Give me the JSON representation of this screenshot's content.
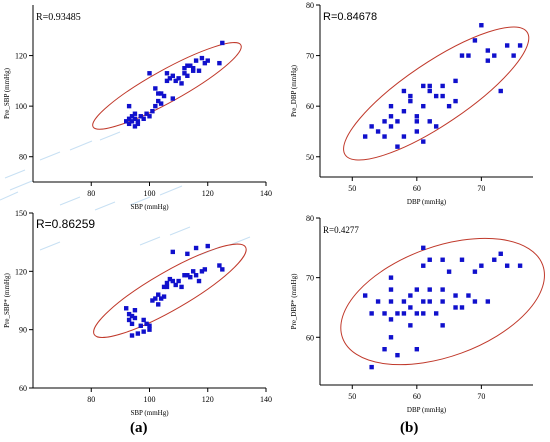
{
  "colors": {
    "point": "#1010cc",
    "ellipse": "#c0392b",
    "axis": "#000000",
    "watermark": "#9cc8ea"
  },
  "captions": [
    "(a)",
    "(b)"
  ],
  "chart_data": [
    {
      "type": "scatter",
      "r_label": "R=0.93485",
      "xlabel": "SBP (mmHg)",
      "ylabel": "Pre_SBP (mmHg)",
      "xlim": [
        60,
        140
      ],
      "ylim": [
        70,
        140
      ],
      "xticks": [
        80,
        100,
        120,
        140
      ],
      "yticks": [
        80,
        100,
        120
      ],
      "ellipse": {
        "center": [
          106,
          108
        ],
        "rx": 29,
        "ry": 5.5,
        "angle": -29
      },
      "points": [
        [
          92,
          94
        ],
        [
          93,
          95
        ],
        [
          93,
          93
        ],
        [
          94,
          96
        ],
        [
          94,
          94
        ],
        [
          95,
          92
        ],
        [
          95,
          95
        ],
        [
          96,
          93
        ],
        [
          95,
          97
        ],
        [
          97,
          96
        ],
        [
          98,
          95
        ],
        [
          99,
          97
        ],
        [
          100,
          96
        ],
        [
          93,
          100
        ],
        [
          100,
          113
        ],
        [
          101,
          98
        ],
        [
          102,
          100
        ],
        [
          103,
          102
        ],
        [
          103,
          105
        ],
        [
          104,
          105
        ],
        [
          105,
          104
        ],
        [
          106,
          110
        ],
        [
          106,
          113
        ],
        [
          107,
          111
        ],
        [
          108,
          112
        ],
        [
          109,
          110
        ],
        [
          110,
          111
        ],
        [
          111,
          109
        ],
        [
          112,
          113
        ],
        [
          112,
          115
        ],
        [
          113,
          116
        ],
        [
          114,
          116
        ],
        [
          115,
          114
        ],
        [
          116,
          118
        ],
        [
          117,
          114
        ],
        [
          118,
          119
        ],
        [
          119,
          117
        ],
        [
          120,
          118
        ],
        [
          115,
          115
        ],
        [
          113,
          112
        ],
        [
          124,
          117
        ],
        [
          125,
          125
        ],
        [
          102,
          107
        ],
        [
          104,
          101
        ],
        [
          108,
          103
        ],
        [
          96,
          94
        ]
      ]
    },
    {
      "type": "scatter",
      "r_label": "R=0.84678",
      "xlabel": "DBP (mmHg)",
      "ylabel": "Pre_DBP (mmHg)",
      "xlim": [
        45,
        78
      ],
      "ylim": [
        46,
        80
      ],
      "xticks": [
        50,
        60,
        70
      ],
      "yticks": [
        50,
        60,
        70,
        80
      ],
      "ellipse": {
        "center": [
          63,
          62.5
        ],
        "rx": 17,
        "ry": 4.8,
        "angle": -34
      },
      "points": [
        [
          52,
          54
        ],
        [
          53,
          56
        ],
        [
          54,
          55
        ],
        [
          55,
          57
        ],
        [
          55,
          54
        ],
        [
          56,
          60
        ],
        [
          56,
          58
        ],
        [
          56,
          56
        ],
        [
          57,
          57
        ],
        [
          57,
          52
        ],
        [
          58,
          54
        ],
        [
          58,
          59
        ],
        [
          59,
          61
        ],
        [
          59,
          62
        ],
        [
          60,
          58
        ],
        [
          60,
          57
        ],
        [
          60,
          55
        ],
        [
          61,
          64
        ],
        [
          61,
          60
        ],
        [
          61,
          53
        ],
        [
          62,
          63
        ],
        [
          62,
          64
        ],
        [
          63,
          56
        ],
        [
          63,
          62
        ],
        [
          64,
          62
        ],
        [
          64,
          64
        ],
        [
          65,
          60
        ],
        [
          66,
          65
        ],
        [
          66,
          61
        ],
        [
          67,
          70
        ],
        [
          68,
          70
        ],
        [
          69,
          73
        ],
        [
          70,
          76
        ],
        [
          71,
          69
        ],
        [
          71,
          71
        ],
        [
          72,
          70
        ],
        [
          73,
          63
        ],
        [
          74,
          72
        ],
        [
          75,
          70
        ],
        [
          76,
          72
        ],
        [
          58,
          63
        ],
        [
          62,
          57
        ]
      ]
    },
    {
      "type": "scatter",
      "r_label": "R=0.86259",
      "xlabel": "SBP (mmHg)",
      "ylabel": "Pre_SBP* (mmHg)",
      "xlim": [
        60,
        140
      ],
      "ylim": [
        60,
        150
      ],
      "xticks": [
        80,
        100,
        120,
        140
      ],
      "yticks": [
        60,
        90,
        120,
        150
      ],
      "ellipse": {
        "center": [
          107,
          110
        ],
        "rx": 30,
        "ry": 6.5,
        "angle": -30
      },
      "points": [
        [
          92,
          101
        ],
        [
          93,
          98
        ],
        [
          93,
          95
        ],
        [
          94,
          97
        ],
        [
          94,
          93
        ],
        [
          95,
          100
        ],
        [
          95,
          96
        ],
        [
          96,
          88
        ],
        [
          97,
          92
        ],
        [
          98,
          95
        ],
        [
          98,
          89
        ],
        [
          99,
          93
        ],
        [
          100,
          92
        ],
        [
          100,
          90
        ],
        [
          94,
          87
        ],
        [
          101,
          105
        ],
        [
          102,
          106
        ],
        [
          103,
          108
        ],
        [
          104,
          106
        ],
        [
          105,
          107
        ],
        [
          106,
          114
        ],
        [
          106,
          112
        ],
        [
          107,
          116
        ],
        [
          108,
          115
        ],
        [
          108,
          130
        ],
        [
          109,
          113
        ],
        [
          110,
          115
        ],
        [
          111,
          112
        ],
        [
          112,
          118
        ],
        [
          113,
          118
        ],
        [
          113,
          129
        ],
        [
          114,
          117
        ],
        [
          115,
          120
        ],
        [
          116,
          118
        ],
        [
          116,
          132
        ],
        [
          117,
          115
        ],
        [
          118,
          120
        ],
        [
          119,
          121
        ],
        [
          120,
          133
        ],
        [
          124,
          123
        ],
        [
          125,
          121
        ],
        [
          105,
          112
        ],
        [
          103,
          103
        ]
      ]
    },
    {
      "type": "scatter",
      "r_label": "R=0.4277",
      "xlabel": "DBP (mmHg)",
      "ylabel": "Pre_DBP* (mmHg)",
      "xlim": [
        45,
        78
      ],
      "ylim": [
        52,
        80
      ],
      "xticks": [
        50,
        60,
        70
      ],
      "yticks": [
        60,
        70,
        80
      ],
      "ellipse": {
        "center": [
          64,
          66
        ],
        "rx": 16.5,
        "ry": 8.5,
        "angle": -20
      },
      "points": [
        [
          52,
          67
        ],
        [
          53,
          55
        ],
        [
          53,
          64
        ],
        [
          54,
          66
        ],
        [
          55,
          64
        ],
        [
          55,
          58
        ],
        [
          56,
          70
        ],
        [
          56,
          68
        ],
        [
          56,
          66
        ],
        [
          56,
          63
        ],
        [
          56,
          60
        ],
        [
          57,
          57
        ],
        [
          57,
          64
        ],
        [
          58,
          66
        ],
        [
          58,
          64
        ],
        [
          59,
          65
        ],
        [
          59,
          67
        ],
        [
          59,
          62
        ],
        [
          60,
          68
        ],
        [
          60,
          64
        ],
        [
          60,
          58
        ],
        [
          61,
          75
        ],
        [
          61,
          72
        ],
        [
          61,
          66
        ],
        [
          61,
          64
        ],
        [
          62,
          73
        ],
        [
          62,
          68
        ],
        [
          62,
          66
        ],
        [
          63,
          64
        ],
        [
          64,
          73
        ],
        [
          64,
          68
        ],
        [
          64,
          66
        ],
        [
          64,
          62
        ],
        [
          65,
          71
        ],
        [
          66,
          67
        ],
        [
          66,
          65
        ],
        [
          67,
          73
        ],
        [
          67,
          65
        ],
        [
          68,
          67
        ],
        [
          69,
          71
        ],
        [
          69,
          66
        ],
        [
          70,
          72
        ],
        [
          71,
          66
        ],
        [
          72,
          73
        ],
        [
          73,
          74
        ],
        [
          74,
          72
        ],
        [
          76,
          72
        ]
      ]
    }
  ]
}
